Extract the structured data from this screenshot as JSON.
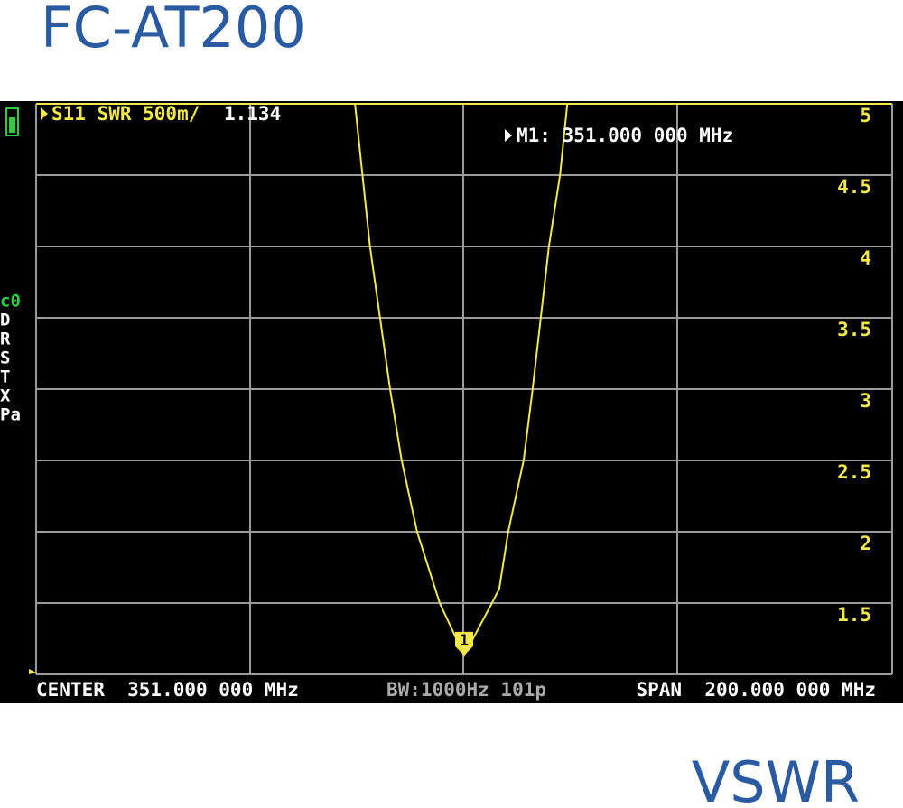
{
  "header": {
    "title": "FC-AT200"
  },
  "footer": {
    "label": "VSWR"
  },
  "chart_data": {
    "type": "line",
    "trace_label": "S11 SWR 500m/",
    "trace_value": 1.134,
    "marker_readout": "M1: 351.000 000 MHz",
    "marker_label": "1",
    "marker_index": 6,
    "status": {
      "center": "CENTER  351.000 000 MHz",
      "bw": "BW:1000Hz 101p",
      "span": "SPAN  200.000 000 MHz"
    },
    "sidebar": [
      "c0",
      "D",
      "R",
      "S",
      "T",
      "X",
      "Pa"
    ],
    "x": [
      325.5,
      329,
      333.7,
      336.4,
      340,
      345.3,
      351,
      357.5,
      359.2,
      361.3,
      364.9,
      367,
      370.8,
      373.4,
      375.1
    ],
    "series": [
      {
        "color": "#f2e84a",
        "values": [
          5,
          4,
          3,
          2.5,
          2,
          1.5,
          1.134,
          1.5,
          1.6,
          2,
          2.5,
          3,
          4,
          4.5,
          5
        ]
      }
    ],
    "xlim": [
      251,
      451
    ],
    "ylim": [
      1,
      5
    ],
    "yticks": [
      1.5,
      2,
      2.5,
      3,
      3.5,
      4,
      4.5,
      5
    ],
    "grid": true
  }
}
